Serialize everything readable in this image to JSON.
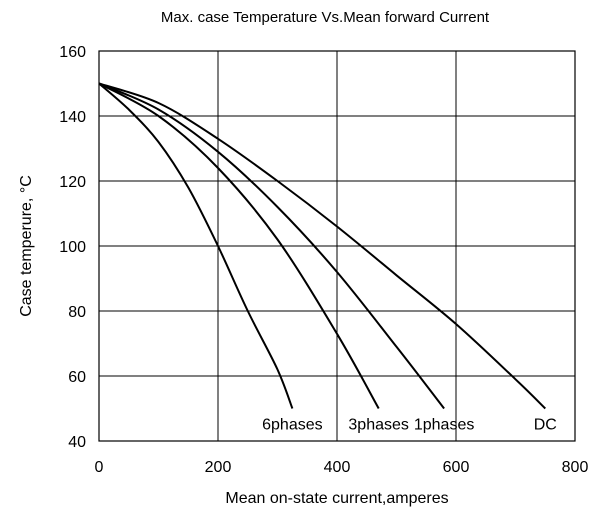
{
  "chart_data": {
    "type": "line",
    "title": "Max. case Temperature  Vs.Mean forward  Current",
    "xlabel": "Mean on-state current,amperes",
    "ylabel": "Case temperure, °C",
    "xlim": [
      0,
      800
    ],
    "ylim": [
      40,
      160
    ],
    "x_ticks": [
      0,
      200,
      400,
      600,
      800
    ],
    "y_ticks": [
      40,
      60,
      80,
      100,
      120,
      140,
      160
    ],
    "grid": true,
    "series": [
      {
        "name": "6phases",
        "x": [
          0,
          50,
          100,
          150,
          200,
          250,
          300,
          325
        ],
        "y": [
          150,
          142,
          132,
          118,
          100,
          80,
          62,
          50
        ]
      },
      {
        "name": "3phases",
        "x": [
          0,
          100,
          200,
          300,
          400,
          470
        ],
        "y": [
          150,
          140,
          124,
          102,
          73,
          50
        ]
      },
      {
        "name": "1phases",
        "x": [
          0,
          100,
          200,
          300,
          400,
          500,
          580
        ],
        "y": [
          150,
          142,
          129,
          112,
          92,
          69,
          50
        ]
      },
      {
        "name": "DC",
        "x": [
          0,
          100,
          200,
          300,
          400,
          500,
          600,
          700,
          750
        ],
        "y": [
          150,
          144,
          133,
          120,
          106,
          91,
          76,
          59,
          50
        ]
      }
    ]
  }
}
